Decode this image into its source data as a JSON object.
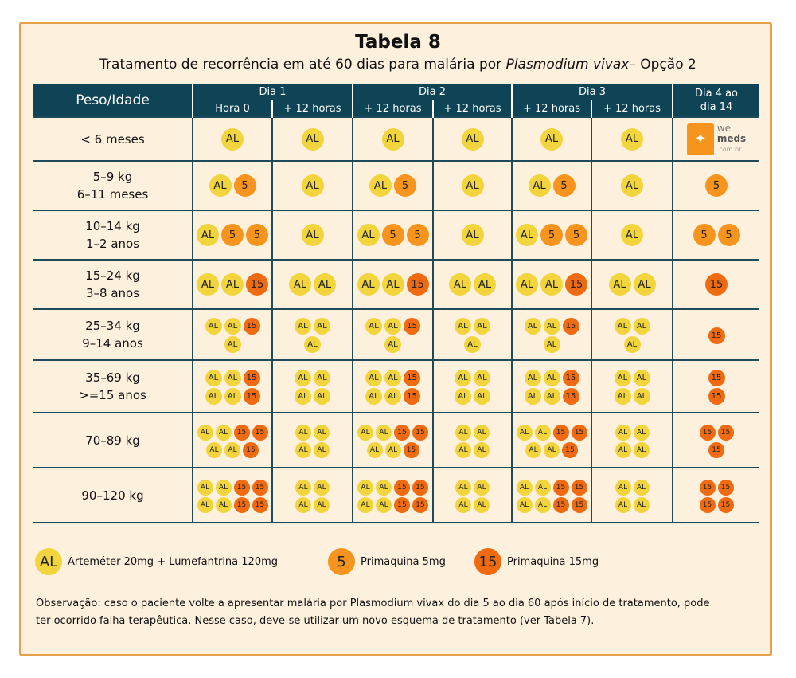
{
  "title": "Tabela 8",
  "subtitle_pre": "Tratamento de recorrência em até 60 dias para malária por ",
  "subtitle_species": "Plasmodium vivax",
  "subtitle_post": "– Opção 2",
  "header": {
    "peso": "Peso/Idade",
    "dia1": "Dia 1",
    "dia2": "Dia 2",
    "dia3": "Dia 3",
    "dia4_line1": "Dia 4 ao",
    "dia4_line2": "dia 14",
    "sub": [
      "Hora 0",
      "+ 12 horas",
      "+ 12 horas",
      "+ 12 horas",
      "+ 12 horas",
      "+ 12 horas"
    ]
  },
  "logo": {
    "line1": "we",
    "line2": "meds",
    "line3": ".com.br"
  },
  "rows": [
    {
      "peso": [
        "< 6 meses"
      ],
      "h": 55,
      "size": "lg",
      "cells": [
        [
          [
            "AL"
          ]
        ],
        [
          [
            "AL"
          ]
        ],
        [
          [
            "AL"
          ]
        ],
        [
          [
            "AL"
          ]
        ],
        [
          [
            "AL"
          ]
        ],
        [
          [
            "AL"
          ]
        ],
        "logo"
      ]
    },
    {
      "peso": [
        "5–9 kg",
        "6–11 meses"
      ],
      "h": 62,
      "size": "lg",
      "cells": [
        [
          [
            "AL",
            "5"
          ]
        ],
        [
          [
            "AL"
          ]
        ],
        [
          [
            "AL",
            "5"
          ]
        ],
        [
          [
            "AL"
          ]
        ],
        [
          [
            "AL",
            "5"
          ]
        ],
        [
          [
            "AL"
          ]
        ],
        [
          [
            "5"
          ]
        ]
      ]
    },
    {
      "peso": [
        "10–14 kg",
        "1–2 anos"
      ],
      "h": 62,
      "size": "lg",
      "cells": [
        [
          [
            "AL",
            "5",
            "5"
          ]
        ],
        [
          [
            "AL"
          ]
        ],
        [
          [
            "AL",
            "5",
            "5"
          ]
        ],
        [
          [
            "AL"
          ]
        ],
        [
          [
            "AL",
            "5",
            "5"
          ]
        ],
        [
          [
            "AL"
          ]
        ],
        [
          [
            "5",
            "5"
          ]
        ]
      ]
    },
    {
      "peso": [
        "15–24 kg",
        "3–8 anos"
      ],
      "h": 62,
      "size": "lg",
      "cells": [
        [
          [
            "AL",
            "AL",
            "15"
          ]
        ],
        [
          [
            "AL",
            "AL"
          ]
        ],
        [
          [
            "AL",
            "AL",
            "15"
          ]
        ],
        [
          [
            "AL",
            "AL"
          ]
        ],
        [
          [
            "AL",
            "AL",
            "15"
          ]
        ],
        [
          [
            "AL",
            "AL"
          ]
        ],
        [
          [
            "15"
          ]
        ]
      ]
    },
    {
      "peso": [
        "25–34 kg",
        "9–14 anos"
      ],
      "h": 64,
      "size": "sm",
      "cells": [
        [
          [
            "AL",
            "AL",
            "15"
          ],
          [
            "AL"
          ]
        ],
        [
          [
            "AL",
            "AL"
          ],
          [
            "AL"
          ]
        ],
        [
          [
            "AL",
            "AL",
            "15"
          ],
          [
            "AL"
          ]
        ],
        [
          [
            "AL",
            "AL"
          ],
          [
            "AL"
          ]
        ],
        [
          [
            "AL",
            "AL",
            "15"
          ],
          [
            "AL"
          ]
        ],
        [
          [
            "AL",
            "AL"
          ],
          [
            "AL"
          ]
        ],
        [
          [
            "15"
          ]
        ]
      ]
    },
    {
      "peso": [
        "35–69 kg",
        ">=15 anos"
      ],
      "h": 66,
      "size": "sm",
      "cells": [
        [
          [
            "AL",
            "AL",
            "15"
          ],
          [
            "AL",
            "AL",
            "15"
          ]
        ],
        [
          [
            "AL",
            "AL"
          ],
          [
            "AL",
            "AL"
          ]
        ],
        [
          [
            "AL",
            "AL",
            "15"
          ],
          [
            "AL",
            "AL",
            "15"
          ]
        ],
        [
          [
            "AL",
            "AL"
          ],
          [
            "AL",
            "AL"
          ]
        ],
        [
          [
            "AL",
            "AL",
            "15"
          ],
          [
            "AL",
            "AL",
            "15"
          ]
        ],
        [
          [
            "AL",
            "AL"
          ],
          [
            "AL",
            "AL"
          ]
        ],
        [
          [
            "15"
          ],
          [
            "15"
          ]
        ]
      ]
    },
    {
      "peso": [
        "70–89 kg"
      ],
      "h": 69,
      "size": "xs",
      "cells": [
        [
          [
            "AL",
            "AL",
            "15",
            "15"
          ],
          [
            "AL",
            "AL",
            "15"
          ]
        ],
        [
          [
            "AL",
            "AL"
          ],
          [
            "AL",
            "AL"
          ]
        ],
        [
          [
            "AL",
            "AL",
            "15",
            "15"
          ],
          [
            "AL",
            "AL",
            "15"
          ]
        ],
        [
          [
            "AL",
            "AL"
          ],
          [
            "AL",
            "AL"
          ]
        ],
        [
          [
            "AL",
            "AL",
            "15",
            "15"
          ],
          [
            "AL",
            "AL",
            "15"
          ]
        ],
        [
          [
            "AL",
            "AL"
          ],
          [
            "AL",
            "AL"
          ]
        ],
        [
          [
            "15",
            "15"
          ],
          [
            "15"
          ]
        ]
      ]
    },
    {
      "peso": [
        "90–120 kg"
      ],
      "h": 69,
      "size": "xs",
      "cells": [
        [
          [
            "AL",
            "AL",
            "15",
            "15"
          ],
          [
            "AL",
            "AL",
            "15",
            "15"
          ]
        ],
        [
          [
            "AL",
            "AL"
          ],
          [
            "AL",
            "AL"
          ]
        ],
        [
          [
            "AL",
            "AL",
            "15",
            "15"
          ],
          [
            "AL",
            "AL",
            "15",
            "15"
          ]
        ],
        [
          [
            "AL",
            "AL"
          ],
          [
            "AL",
            "AL"
          ]
        ],
        [
          [
            "AL",
            "AL",
            "15",
            "15"
          ],
          [
            "AL",
            "AL",
            "15",
            "15"
          ]
        ],
        [
          [
            "AL",
            "AL"
          ],
          [
            "AL",
            "AL"
          ]
        ],
        [
          [
            "15",
            "15"
          ],
          [
            "15",
            "15"
          ]
        ]
      ]
    }
  ],
  "legend": {
    "al_label": "AL",
    "al_text": "Arteméter 20mg + Lumefantrina 120mg",
    "p5_label": "5",
    "p5_text": "Primaquina 5mg",
    "p15_label": "15",
    "p15_text": "Primaquina 15mg"
  },
  "note_line1": "Observação: caso o paciente volte a apresentar malária por Plasmodium vivax do dia 5 ao dia 60 após início de tratamento, pode",
  "note_line2": "ter ocorrido falha terapêutica. Nesse caso, deve-se utilizar um novo esquema de tratamento (ver Tabela 7).",
  "colors": {
    "al": "#f2d53c",
    "p5": "#f7941d",
    "p15": "#f06a12",
    "header": "#0e4456",
    "border": "#e6a04a",
    "background": "#fdf0dc"
  }
}
